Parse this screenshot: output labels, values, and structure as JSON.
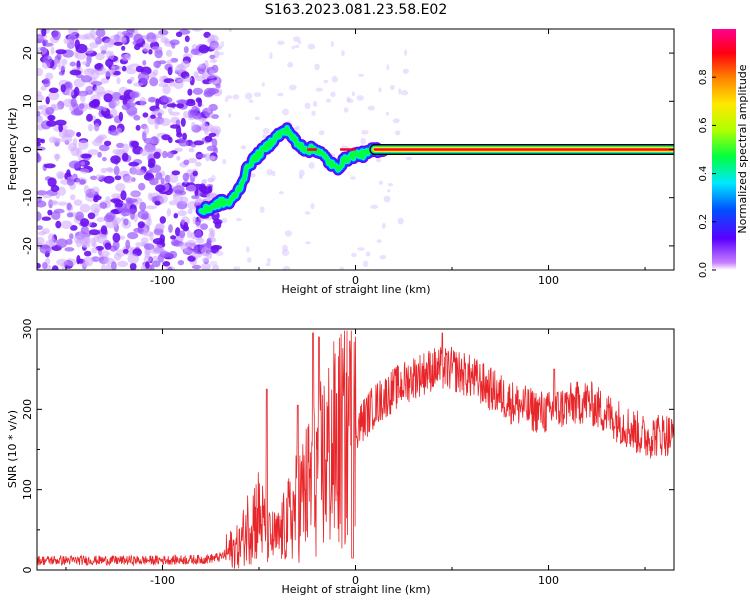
{
  "title": "S163.2023.081.23.58.E02",
  "colors": {
    "snr_line": "#e8262a",
    "axis": "#000000",
    "background": "#ffffff"
  },
  "chart_data": [
    {
      "type": "heatmap",
      "xlabel": "Height of straight line (km)",
      "ylabel": "Frequency (Hz)",
      "xlim": [
        -165,
        165
      ],
      "ylim": [
        -25,
        25
      ],
      "xticks": [
        -100,
        0,
        100
      ],
      "yticks": [
        -20,
        -10,
        0,
        10,
        20
      ],
      "colorbar": {
        "label": "Normalized spectral amplitude",
        "range": [
          0.0,
          1.0
        ],
        "ticks": [
          0.0,
          0.2,
          0.4,
          0.6,
          0.8
        ],
        "colormap": "rainbow (magenta-white low, blue, cyan, green, yellow, red high)"
      },
      "noise_region_x": [
        -165,
        -77
      ],
      "doppler_ridge": {
        "x": [
          -80,
          -75,
          -70,
          -65,
          -60,
          -55,
          -50,
          -45,
          -40,
          -35,
          -30,
          -25,
          -20,
          -15,
          -10,
          -5,
          0,
          5,
          10,
          15,
          20,
          50,
          100,
          150,
          165
        ],
        "y": [
          -13,
          -12,
          -11,
          -11,
          -8,
          -3,
          -1,
          1,
          3,
          4,
          1,
          0,
          0,
          -2,
          -4,
          -2,
          -1,
          -1,
          0,
          0,
          0,
          0,
          0,
          0,
          0
        ]
      }
    },
    {
      "type": "line",
      "xlabel": "Height of straight line (km)",
      "ylabel": "SNR (10 * v/v)",
      "xlim": [
        -165,
        165
      ],
      "ylim": [
        0,
        300
      ],
      "xticks": [
        -100,
        0,
        100
      ],
      "yticks": [
        0,
        100,
        200,
        300
      ],
      "envelope": {
        "x": [
          -165,
          -140,
          -110,
          -80,
          -70,
          -60,
          -55,
          -50,
          -45,
          -40,
          -35,
          -30,
          -25,
          -20,
          -15,
          -10,
          -5,
          0,
          5,
          10,
          20,
          30,
          40,
          50,
          60,
          70,
          80,
          90,
          100,
          110,
          120,
          130,
          140,
          150,
          160,
          165
        ],
        "y": [
          12,
          12,
          12,
          13,
          16,
          30,
          60,
          70,
          40,
          40,
          60,
          80,
          100,
          120,
          140,
          155,
          165,
          175,
          190,
          205,
          225,
          240,
          250,
          250,
          240,
          225,
          210,
          200,
          195,
          205,
          210,
          195,
          180,
          165,
          170,
          165
        ]
      },
      "spikes": [
        {
          "x": -46,
          "y": 225
        },
        {
          "x": -30,
          "y": 205
        },
        {
          "x": -22,
          "y": 295
        },
        {
          "x": -19,
          "y": 290
        },
        {
          "x": -3,
          "y": 285
        },
        {
          "x": 45,
          "y": 295
        },
        {
          "x": 103,
          "y": 250
        }
      ]
    }
  ]
}
